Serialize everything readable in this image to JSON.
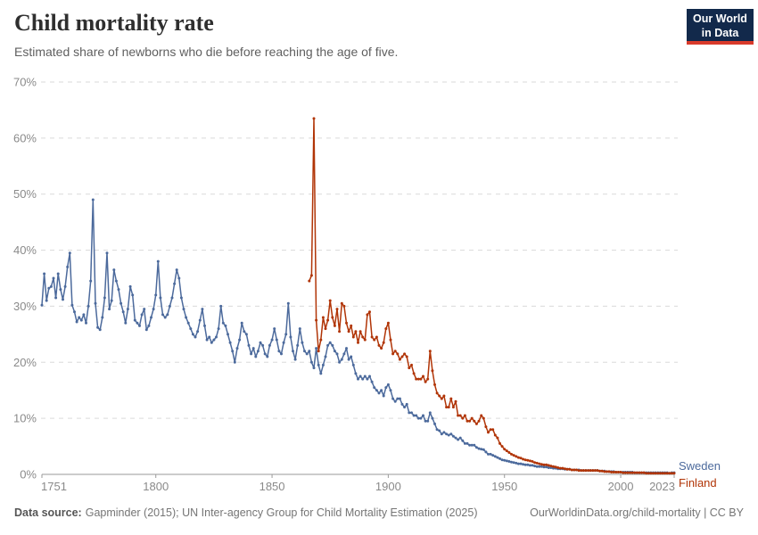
{
  "logo": {
    "line1": "Our World",
    "line2": "in Data",
    "bg_color": "#12294B",
    "accent_color": "#D93A2B"
  },
  "footer": {
    "source_label": "Data source:",
    "source_text": "Gapminder (2015); UN Inter-agency Group for Child Mortality Estimation (2025)",
    "link_text": "OurWorldinData.org/child-mortality | CC BY"
  },
  "chart_data": {
    "type": "line",
    "title": "Child mortality rate",
    "subtitle": "Estimated share of newborns who die before reaching the age of five.",
    "xlabel": "",
    "ylabel": "",
    "grid": "horizontal-dashed",
    "legend_position": "end-of-line-labels",
    "colors": {
      "grid": "#dadada",
      "axis": "#9a9a9a",
      "tick_label": "#8a8a8a"
    },
    "x_axis": {
      "range": [
        1751,
        2023
      ],
      "ticks": [
        1751,
        1800,
        1850,
        1900,
        1950,
        2000,
        2023
      ]
    },
    "y_axis": {
      "range": [
        0,
        70
      ],
      "unit": "%",
      "tick_values": [
        0,
        10,
        20,
        30,
        40,
        50,
        60,
        70
      ],
      "ticks": [
        "0%",
        "10%",
        "20%",
        "30%",
        "40%",
        "50%",
        "60%",
        "70%"
      ]
    },
    "series": [
      {
        "name": "Sweden",
        "color": "#4C6A9C",
        "start_year": 1751,
        "values": [
          30.2,
          35.8,
          31.0,
          33.2,
          33.5,
          35.0,
          31.5,
          35.8,
          33.0,
          31.2,
          33.5,
          37.0,
          39.5,
          30.2,
          29.0,
          27.2,
          28.0,
          27.5,
          28.5,
          27.0,
          30.0,
          34.5,
          49.0,
          30.5,
          26.2,
          25.8,
          28.0,
          31.5,
          39.5,
          29.5,
          31.0,
          36.5,
          34.5,
          33.0,
          30.5,
          29.0,
          27.0,
          29.5,
          33.5,
          32.0,
          27.5,
          27.0,
          26.5,
          28.5,
          29.5,
          25.8,
          26.5,
          28.0,
          29.5,
          32.0,
          38.0,
          31.5,
          28.5,
          28.0,
          28.5,
          30.0,
          31.5,
          34.0,
          36.5,
          35.0,
          31.5,
          29.5,
          28.0,
          27.0,
          26.0,
          25.0,
          24.5,
          25.5,
          27.5,
          29.5,
          26.5,
          24.0,
          24.5,
          23.5,
          24.0,
          24.5,
          26.0,
          30.0,
          27.0,
          26.5,
          25.0,
          23.5,
          22.0,
          20.0,
          22.5,
          24.0,
          27.0,
          25.5,
          25.0,
          23.0,
          21.5,
          22.5,
          21.0,
          22.0,
          23.5,
          23.0,
          21.5,
          21.0,
          23.0,
          24.0,
          26.0,
          24.0,
          22.0,
          21.5,
          23.5,
          25.0,
          30.5,
          24.5,
          22.0,
          20.5,
          23.0,
          26.0,
          23.5,
          22.0,
          21.5,
          22.0,
          20.0,
          19.0,
          22.5,
          19.5,
          18.0,
          19.5,
          21.0,
          23.0,
          23.5,
          23.0,
          22.0,
          21.5,
          20.0,
          20.5,
          21.5,
          22.5,
          20.5,
          21.0,
          19.5,
          18.0,
          17.0,
          17.5,
          17.0,
          17.5,
          17.0,
          17.5,
          16.5,
          15.5,
          15.0,
          14.5,
          15.0,
          14.0,
          15.5,
          16.0,
          15.0,
          13.5,
          13.0,
          13.5,
          13.5,
          12.5,
          12.0,
          12.5,
          11.0,
          11.0,
          10.5,
          10.5,
          10.0,
          10.0,
          10.5,
          9.5,
          9.5,
          11.0,
          10.0,
          9.0,
          8.0,
          7.8,
          7.2,
          7.5,
          7.2,
          7.0,
          7.2,
          6.8,
          6.5,
          6.2,
          6.5,
          6.0,
          5.5,
          5.5,
          5.2,
          5.2,
          5.2,
          4.8,
          4.6,
          4.5,
          4.4,
          4.0,
          3.6,
          3.6,
          3.4,
          3.2,
          3.0,
          2.8,
          2.6,
          2.5,
          2.4,
          2.3,
          2.2,
          2.1,
          2.0,
          1.9,
          1.9,
          1.8,
          1.7,
          1.7,
          1.6,
          1.6,
          1.5,
          1.4,
          1.4,
          1.4,
          1.3,
          1.3,
          1.2,
          1.2,
          1.1,
          1.1,
          1.0,
          1.0,
          1.0,
          0.9,
          0.9,
          0.9,
          0.8,
          0.8,
          0.8,
          0.8,
          0.7,
          0.7,
          0.7,
          0.7,
          0.7,
          0.7,
          0.7,
          0.7,
          0.6,
          0.6,
          0.6,
          0.5,
          0.5,
          0.5,
          0.5,
          0.4,
          0.4,
          0.4,
          0.4,
          0.4,
          0.4,
          0.4,
          0.4,
          0.3,
          0.3,
          0.3,
          0.3,
          0.3,
          0.3,
          0.3,
          0.3,
          0.3,
          0.3,
          0.3,
          0.3,
          0.3,
          0.3,
          0.3,
          0.2,
          0.3,
          0.3
        ]
      },
      {
        "name": "Finland",
        "color": "#B13507",
        "start_year": 1866,
        "values": [
          34.5,
          35.5,
          63.5,
          27.5,
          22.0,
          24.0,
          28.0,
          26.0,
          27.5,
          31.0,
          28.0,
          26.5,
          29.5,
          25.5,
          30.5,
          30.0,
          27.0,
          25.5,
          26.5,
          24.5,
          25.5,
          23.5,
          25.5,
          24.5,
          24.0,
          28.5,
          29.0,
          24.5,
          24.0,
          24.5,
          23.0,
          22.5,
          23.5,
          26.0,
          27.0,
          24.0,
          21.5,
          22.0,
          21.5,
          20.5,
          21.0,
          21.5,
          21.0,
          19.0,
          19.5,
          18.0,
          17.0,
          17.0,
          17.0,
          17.5,
          16.5,
          17.0,
          22.0,
          18.5,
          16.0,
          14.5,
          14.0,
          13.5,
          14.0,
          12.0,
          12.0,
          13.5,
          12.0,
          13.0,
          10.5,
          10.5,
          10.0,
          10.5,
          9.5,
          9.5,
          10.0,
          9.5,
          9.0,
          9.5,
          10.5,
          10.0,
          8.5,
          7.5,
          8.0,
          8.0,
          7.0,
          6.5,
          5.5,
          5.0,
          4.5,
          4.2,
          3.9,
          3.6,
          3.4,
          3.2,
          3.0,
          2.9,
          2.7,
          2.6,
          2.5,
          2.4,
          2.3,
          2.1,
          2.0,
          1.9,
          1.8,
          1.7,
          1.7,
          1.6,
          1.5,
          1.4,
          1.3,
          1.2,
          1.1,
          1.1,
          1.0,
          0.9,
          0.9,
          0.8,
          0.8,
          0.8,
          0.7,
          0.7,
          0.7,
          0.7,
          0.7,
          0.7,
          0.7,
          0.7,
          0.7,
          0.6,
          0.6,
          0.5,
          0.5,
          0.5,
          0.4,
          0.4,
          0.4,
          0.4,
          0.4,
          0.3,
          0.3,
          0.3,
          0.3,
          0.3,
          0.3,
          0.3,
          0.3,
          0.3,
          0.3,
          0.2,
          0.2,
          0.2,
          0.2,
          0.2,
          0.2,
          0.2,
          0.2,
          0.2,
          0.2,
          0.2,
          0.2,
          0.2
        ]
      }
    ]
  }
}
